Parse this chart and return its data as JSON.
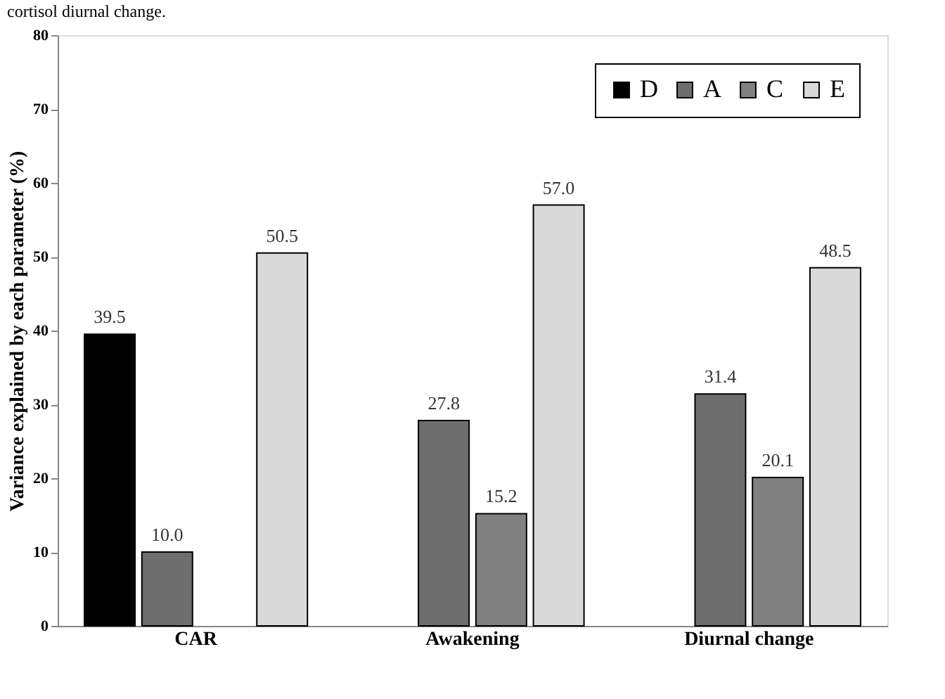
{
  "chart_data": {
    "type": "bar",
    "ylabel": "Variance explained by each parameter (%)",
    "categories": [
      "CAR",
      "Awakening",
      "Diurnal change"
    ],
    "series": [
      {
        "name": "D",
        "color": "#000000",
        "values": [
          39.5,
          null,
          null
        ],
        "value_labels": [
          "39.5",
          null,
          null
        ]
      },
      {
        "name": "A",
        "color": "#6e6e6e",
        "values": [
          10.0,
          27.8,
          31.4
        ],
        "value_labels": [
          "10.0",
          "27.8",
          "31.4"
        ]
      },
      {
        "name": "C",
        "color": "#808080",
        "values": [
          null,
          15.2,
          20.1
        ],
        "value_labels": [
          null,
          "15.2",
          "20.1"
        ]
      },
      {
        "name": "E",
        "color": "#d9d9d9",
        "values": [
          50.5,
          57.0,
          48.5
        ],
        "value_labels": [
          "50.5",
          "57.0",
          "48.5"
        ]
      }
    ],
    "ylim": [
      0,
      80
    ],
    "yticks": [
      0,
      10,
      20,
      30,
      40,
      50,
      60,
      70,
      80
    ],
    "grid": false,
    "legend": "top right",
    "annotations": [
      "cortisol diurnal change."
    ]
  }
}
